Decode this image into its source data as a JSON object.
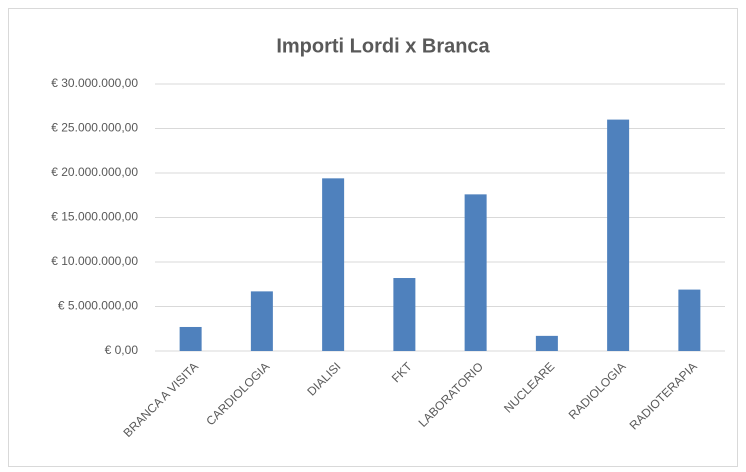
{
  "chart_data": {
    "type": "bar",
    "title": "Importi Lordi x Branca",
    "categories": [
      "BRANCA A VISITA",
      "CARDIOLOGIA",
      "DIALISI",
      "FKT",
      "LABORATORIO",
      "NUCLEARE",
      "RADIOLOGIA",
      "RADIOTERAPIA"
    ],
    "values": [
      2700000,
      6700000,
      19400000,
      8200000,
      17600000,
      1700000,
      26000000,
      6900000
    ],
    "color": "#4f81bd",
    "ylim": [
      0,
      30000000
    ],
    "yticks": [
      {
        "value": 0,
        "label": "€ 0,00"
      },
      {
        "value": 5000000,
        "label": "€ 5.000.000,00"
      },
      {
        "value": 10000000,
        "label": "€ 10.000.000,00"
      },
      {
        "value": 15000000,
        "label": "€ 15.000.000,00"
      },
      {
        "value": 20000000,
        "label": "€ 20.000.000,00"
      },
      {
        "value": 25000000,
        "label": "€ 25.000.000,00"
      },
      {
        "value": 30000000,
        "label": "€ 30.000.000,00"
      }
    ],
    "grid": true
  }
}
